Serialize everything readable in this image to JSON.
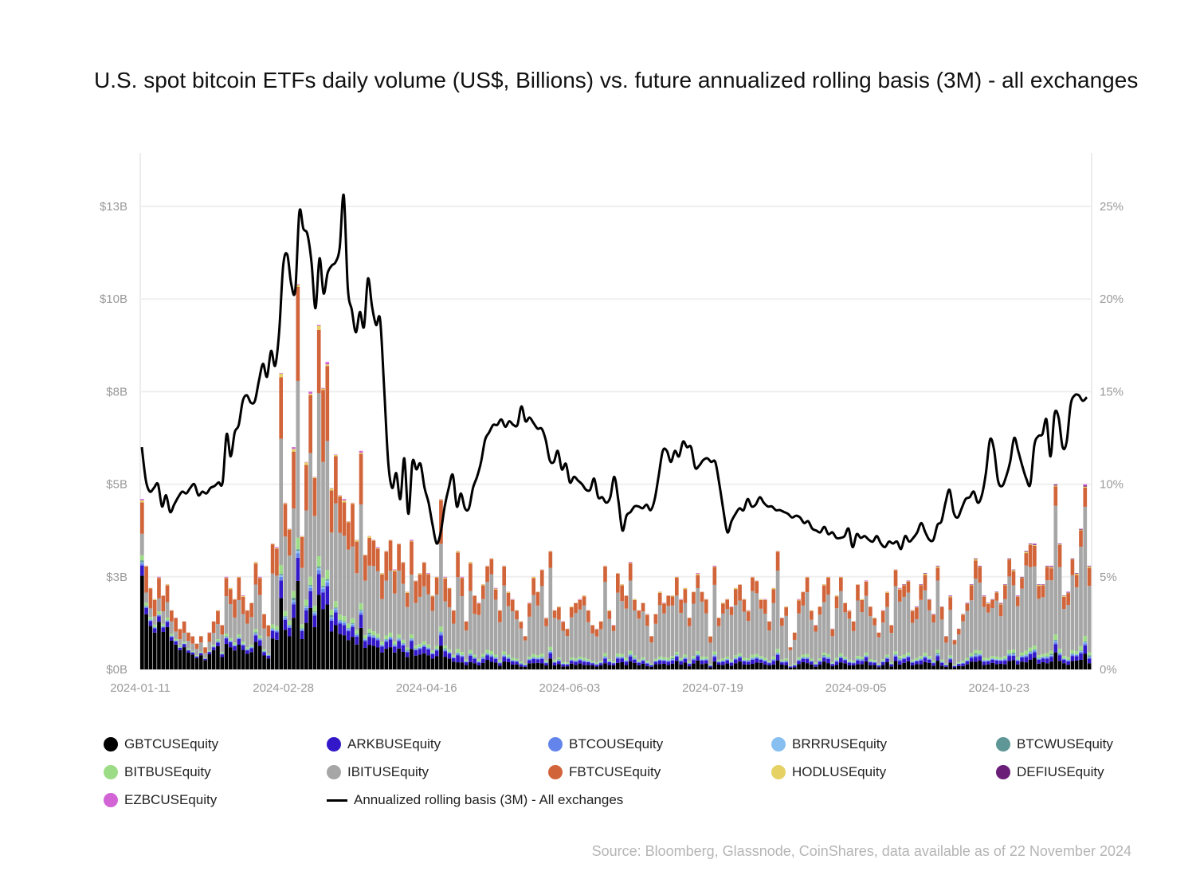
{
  "title": "U.S. spot bitcoin ETFs daily volume (US$, Billions) vs. future annualized rolling basis (3M) - all exchanges",
  "source": "Source: Bloomberg, Glassnode, CoinShares, data available as of 22 November 2024",
  "chart_data": {
    "type": "bar",
    "subtype": "stacked bar + line (dual axis)",
    "title": "U.S. spot bitcoin ETFs daily volume (US$, Billions) vs. future annualized rolling basis (3M) - all exchanges",
    "xlabel": "",
    "ylabel_left": "Daily volume (US$, Billions)",
    "ylabel_right": "Annualized rolling basis (3M)",
    "y_left_ticks": [
      "$0B",
      "$3B",
      "$5B",
      "$8B",
      "$10B",
      "$13B"
    ],
    "y_left_tick_values": [
      0,
      2.5,
      5,
      7.5,
      10,
      12.5
    ],
    "y_left_range": [
      0,
      14
    ],
    "y_right_ticks": [
      "0%",
      "5%",
      "10%",
      "15%",
      "20%",
      "25%"
    ],
    "y_right_tick_values": [
      0,
      5,
      10,
      15,
      20,
      25
    ],
    "y_right_range": [
      0,
      28
    ],
    "x_ticks": [
      "2024-01-11",
      "2024-02-28",
      "2024-04-16",
      "2024-06-03",
      "2024-07-19",
      "2024-09-05",
      "2024-10-23"
    ],
    "x_range": [
      "2024-01-11",
      "2024-11-22"
    ],
    "grid": "horizontal",
    "legend_position": "bottom",
    "series_names": [
      "GBTCUSEquity",
      "ARKBUSEquity",
      "BTCOUSEquity",
      "BRRRUSEquity",
      "BTCWUSEquity",
      "BITBUSEquity",
      "IBITUSEquity",
      "FBTCUSEquity",
      "HODLUSEquity",
      "DEFIUSEquity",
      "EZBCUSEquity"
    ],
    "series_colors": [
      "#000000",
      "#3318c9",
      "#6384ea",
      "#86bff0",
      "#5f9696",
      "#9ddc86",
      "#a6a6a6",
      "#d2643a",
      "#e6d264",
      "#6a1e78",
      "#d364d6"
    ],
    "line_series": {
      "name": "Annualized rolling basis (3M) - All exchanges",
      "color": "#000000"
    },
    "total_volume_billions": [
      4.6,
      2.8,
      2.2,
      1.9,
      2.5,
      2.0,
      2.3,
      1.6,
      1.4,
      1.1,
      1.3,
      1.0,
      0.9,
      0.7,
      0.9,
      0.6,
      1.0,
      1.3,
      1.6,
      1.2,
      2.5,
      2.2,
      1.9,
      2.5,
      2.0,
      1.6,
      1.8,
      2.9,
      2.5,
      1.5,
      1.2,
      3.4,
      3.3,
      8.0,
      4.5,
      3.8,
      6.0,
      10.4,
      3.6,
      5.6,
      7.5,
      5.2,
      9.3,
      7.6,
      8.3,
      4.9,
      5.8,
      4.7,
      4.6,
      4.0,
      4.5,
      3.5,
      5.9,
      3.1,
      3.6,
      3.5,
      3.3,
      2.6,
      3.2,
      3.5,
      2.7,
      3.4,
      2.9,
      2.1,
      3.5,
      2.4,
      2.6,
      2.9,
      2.6,
      2.0,
      2.5,
      4.6,
      2.5,
      2.2,
      1.6,
      3.2,
      2.5,
      1.3,
      2.9,
      2.0,
      1.8,
      2.3,
      2.8,
      3.0,
      2.2,
      1.6,
      2.8,
      2.1,
      1.9,
      1.6,
      1.3,
      0.9,
      1.8,
      2.5,
      2.1,
      2.7,
      1.4,
      3.2,
      1.6,
      1.7,
      1.3,
      1.1,
      1.7,
      1.8,
      1.9,
      2.0,
      1.6,
      1.2,
      1.1,
      1.3,
      2.8,
      1.6,
      1.2,
      2.6,
      2.3,
      2.0,
      2.9,
      1.9,
      1.6,
      1.8,
      1.5,
      0.9,
      1.5,
      2.1,
      1.8,
      2.0,
      2.0,
      2.5,
      1.9,
      2.2,
      1.4,
      2.1,
      2.6,
      2.1,
      1.9,
      0.9,
      2.8,
      1.4,
      1.8,
      1.9,
      1.7,
      2.2,
      2.3,
      1.9,
      1.6,
      2.5,
      2.4,
      1.9,
      1.9,
      1.3,
      2.2,
      3.2,
      1.4,
      1.7,
      0.6,
      1.0,
      1.9,
      2.1,
      2.5,
      1.6,
      1.2,
      1.7,
      2.3,
      2.5,
      1.1,
      2.0,
      2.5,
      1.8,
      1.6,
      1.3,
      2.3,
      1.9,
      2.4,
      1.7,
      1.4,
      1.0,
      1.6,
      2.1,
      1.2,
      2.7,
      2.2,
      2.3,
      2.4,
      1.6,
      1.7,
      2.3,
      2.6,
      1.9,
      1.5,
      2.8,
      1.7,
      0.9,
      2.0,
      0.8,
      1.1,
      1.5,
      1.8,
      2.3,
      3.0,
      2.8,
      2.0,
      1.8,
      1.9,
      2.1,
      1.8,
      2.3,
      3.0,
      2.7,
      2.0,
      2.5,
      3.2,
      3.4,
      3.4,
      2.3,
      2.3,
      2.8,
      2.8,
      5.0,
      3.4,
      2.0,
      2.1,
      3.0,
      2.6,
      3.8,
      5.0,
      2.8
    ],
    "basis_percent": [
      12.0,
      10.2,
      9.6,
      9.8,
      10.0,
      8.8,
      9.4,
      8.5,
      8.9,
      9.3,
      9.6,
      9.5,
      9.8,
      10.0,
      9.4,
      9.6,
      9.5,
      9.8,
      9.9,
      10.1,
      10.1,
      12.7,
      11.5,
      12.8,
      13.2,
      14.5,
      14.8,
      14.4,
      14.5,
      15.6,
      16.5,
      15.8,
      17.2,
      16.4,
      18.2,
      21.8,
      22.4,
      20.8,
      20.5,
      24.7,
      23.8,
      23.5,
      22.0,
      19.5,
      22.2,
      20.3,
      21.4,
      21.8,
      22.0,
      22.8,
      25.6,
      20.6,
      19.4,
      18.2,
      19.3,
      18.5,
      21.1,
      19.6,
      18.6,
      18.9,
      15.2,
      11.2,
      9.8,
      10.6,
      9.2,
      11.4,
      8.4,
      11.2,
      10.8,
      11.1,
      9.8,
      9.0,
      7.8,
      6.8,
      7.4,
      8.8,
      9.8,
      10.5,
      8.8,
      9.5,
      8.7,
      8.7,
      9.8,
      10.4,
      11.2,
      12.4,
      12.8,
      13.2,
      13.2,
      13.5,
      13.1,
      13.4,
      13.2,
      13.2,
      14.2,
      13.4,
      13.6,
      13.3,
      13.0,
      13.0,
      12.4,
      11.3,
      11.2,
      11.8,
      10.8,
      11.1,
      10.1,
      10.4,
      10.2,
      10.0,
      9.7,
      9.7,
      10.3,
      9.3,
      9.3,
      9.0,
      9.3,
      10.4,
      9.1,
      7.5,
      8.3,
      8.5,
      8.8,
      8.8,
      8.7,
      8.9,
      8.6,
      9.2,
      10.5,
      11.8,
      11.8,
      11.2,
      11.8,
      11.5,
      12.3,
      12.0,
      12.0,
      10.9,
      11.0,
      11.3,
      11.4,
      11.2,
      11.2,
      10.0,
      8.6,
      7.4,
      8.0,
      8.4,
      8.7,
      8.6,
      9.2,
      8.8,
      8.9,
      9.3,
      9.0,
      8.8,
      8.8,
      8.6,
      8.6,
      8.5,
      8.4,
      8.2,
      8.3,
      8.2,
      7.9,
      8.0,
      7.6,
      7.5,
      7.4,
      7.7,
      7.3,
      7.4,
      7.1,
      7.1,
      7.2,
      7.6,
      6.6,
      7.3,
      7.1,
      7.2,
      7.0,
      6.9,
      7.2,
      6.8,
      6.6,
      6.9,
      6.8,
      6.9,
      6.5,
      7.2,
      6.9,
      7.1,
      7.4,
      7.9,
      7.4,
      7.0,
      7.0,
      7.8,
      8.0,
      9.0,
      9.7,
      8.5,
      8.2,
      8.7,
      9.2,
      9.3,
      9.6,
      9.0,
      9.4,
      10.6,
      12.4,
      11.9,
      10.2,
      9.9,
      10.4,
      11.2,
      12.5,
      11.8,
      11.0,
      10.3,
      10.0,
      12.1,
      12.6,
      12.7,
      13.5,
      11.5,
      13.8,
      13.6,
      12.0,
      12.3,
      14.3,
      14.8,
      14.8,
      14.5,
      14.7
    ]
  },
  "legend": [
    {
      "label": "GBTCUSEquity",
      "color": "#000000",
      "type": "dot"
    },
    {
      "label": "ARKBUSEquity",
      "color": "#3318c9",
      "type": "dot"
    },
    {
      "label": "BTCOUSEquity",
      "color": "#6384ea",
      "type": "dot"
    },
    {
      "label": "BRRRUSEquity",
      "color": "#86bff0",
      "type": "dot"
    },
    {
      "label": "BTCWUSEquity",
      "color": "#5f9696",
      "type": "dot"
    },
    {
      "label": "BITBUSEquity",
      "color": "#9ddc86",
      "type": "dot"
    },
    {
      "label": "IBITUSEquity",
      "color": "#a6a6a6",
      "type": "dot"
    },
    {
      "label": "FBTCUSEquity",
      "color": "#d2643a",
      "type": "dot"
    },
    {
      "label": "HODLUSEquity",
      "color": "#e6d264",
      "type": "dot"
    },
    {
      "label": "DEFIUSEquity",
      "color": "#6a1e78",
      "type": "dot"
    },
    {
      "label": "EZBCUSEquity",
      "color": "#d364d6",
      "type": "dot"
    },
    {
      "label": "Annualized rolling basis (3M) - All exchanges",
      "color": "#000000",
      "type": "line"
    }
  ]
}
